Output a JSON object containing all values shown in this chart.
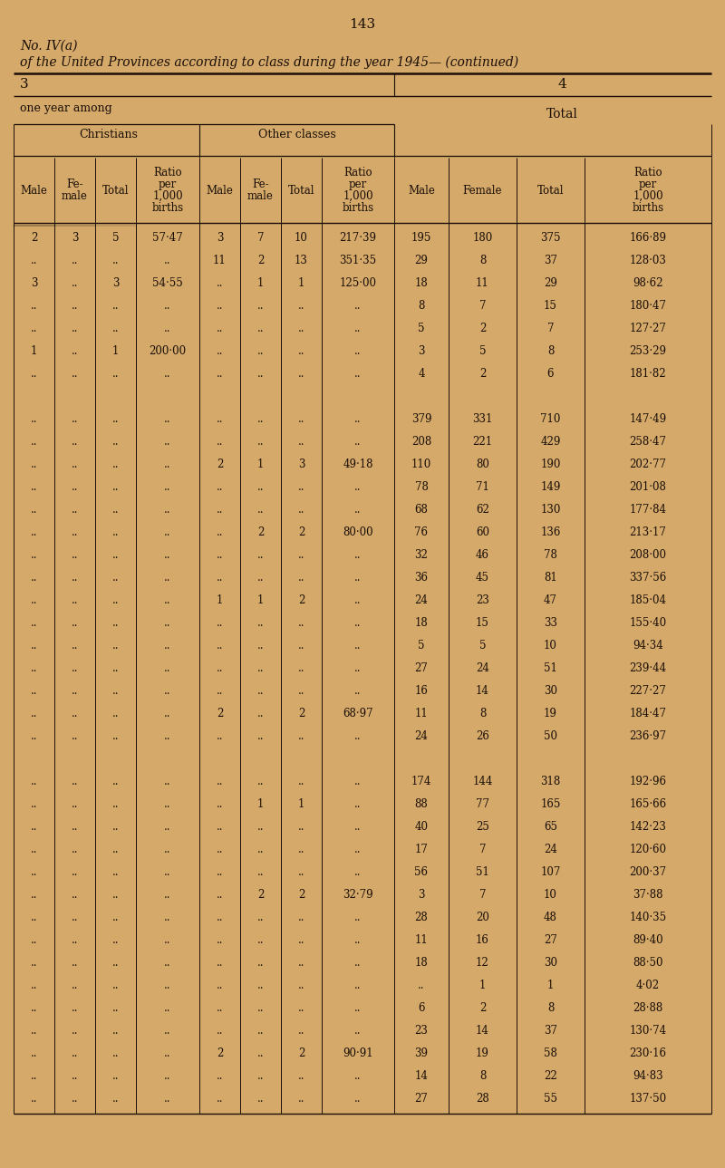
{
  "page_number": "143",
  "title_line1": "No. IV(a)",
  "title_line2": "of the United Provinces according to class during the year 1945— (continued)",
  "bg_color": "#d4a96a",
  "text_color": "#1a0e06",
  "rows": [
    [
      "2",
      "3",
      "5",
      "57·47",
      "3",
      "7",
      "10",
      "217·39",
      "195",
      "180",
      "375",
      "166·89"
    ],
    [
      "..",
      "..",
      "..",
      "..",
      "11",
      "2",
      "13",
      "351·35",
      "29",
      "8",
      "37",
      "128·03"
    ],
    [
      "3",
      "..",
      "3",
      "54·55",
      "..",
      "1",
      "1",
      "125·00",
      "18",
      "11",
      "29",
      "98·62"
    ],
    [
      "..",
      "..",
      "..",
      "..",
      "..",
      "..",
      "..",
      "..",
      "8",
      "7",
      "15",
      "180·47"
    ],
    [
      "..",
      "..",
      "..",
      "..",
      "..",
      "..",
      "..",
      "..",
      "5",
      "2",
      "7",
      "127·27"
    ],
    [
      "1",
      "..",
      "1",
      "200·00",
      "..",
      "..",
      "..",
      "..",
      "3",
      "5",
      "8",
      "253·29"
    ],
    [
      "..",
      "..",
      "..",
      "..",
      "..",
      "..",
      "..",
      "..",
      "4",
      "2",
      "6",
      "181·82"
    ],
    [
      "",
      "",
      "",
      "",
      "",
      "",
      "",
      "",
      "",
      "",
      "",
      ""
    ],
    [
      "..",
      "..",
      "..",
      "..",
      "..",
      "..",
      "..",
      "..",
      "379",
      "331",
      "710",
      "147·49"
    ],
    [
      "..",
      "..",
      "..",
      "..",
      "..",
      "..",
      "..",
      "..",
      "208",
      "221",
      "429",
      "258·47"
    ],
    [
      "..",
      "..",
      "..",
      "..",
      "2",
      "1",
      "3",
      "49·18",
      "110",
      "80",
      "190",
      "202·77"
    ],
    [
      "..",
      "..",
      "..",
      "..",
      "..",
      "..",
      "..",
      "..",
      "78",
      "71",
      "149",
      "201·08"
    ],
    [
      "..",
      "..",
      "..",
      "..",
      "..",
      "..",
      "..",
      "..",
      "68",
      "62",
      "130",
      "177·84"
    ],
    [
      "..",
      "..",
      "..",
      "..",
      "..",
      "2",
      "2",
      "80·00",
      "76",
      "60",
      "136",
      "213·17"
    ],
    [
      "..",
      "..",
      "..",
      "..",
      "..",
      "..",
      "..",
      "..",
      "32",
      "46",
      "78",
      "208·00"
    ],
    [
      "..",
      "..",
      "..",
      "..",
      "..",
      "..",
      "..",
      "..",
      "36",
      "45",
      "81",
      "337·56"
    ],
    [
      "..",
      "..",
      "..",
      "..",
      "1",
      "1",
      "2",
      "..",
      "24",
      "23",
      "47",
      "185·04"
    ],
    [
      "..",
      "..",
      "..",
      "..",
      "..",
      "..",
      "..",
      "..",
      "18",
      "15",
      "33",
      "155·40"
    ],
    [
      "..",
      "..",
      "..",
      "..",
      "..",
      "..",
      "..",
      "..",
      "5",
      "5",
      "10",
      "94·34"
    ],
    [
      "..",
      "..",
      "..",
      "..",
      "..",
      "..",
      "..",
      "..",
      "27",
      "24",
      "51",
      "239·44"
    ],
    [
      "..",
      "..",
      "..",
      "..",
      "..",
      "..",
      "..",
      "..",
      "16",
      "14",
      "30",
      "227·27"
    ],
    [
      "..",
      "..",
      "..",
      "..",
      "2",
      "..",
      "2",
      "68·97",
      "11",
      "8",
      "19",
      "184·47"
    ],
    [
      "..",
      "..",
      "..",
      "..",
      "..",
      "..",
      "..",
      "..",
      "24",
      "26",
      "50",
      "236·97"
    ],
    [
      "",
      "",
      "",
      "",
      "",
      "",
      "",
      "",
      "",
      "",
      "",
      ""
    ],
    [
      "..",
      "..",
      "..",
      "..",
      "..",
      "..",
      "..",
      "..",
      "174",
      "144",
      "318",
      "192·96"
    ],
    [
      "..",
      "..",
      "..",
      "..",
      "..",
      "1",
      "1",
      "..",
      "88",
      "77",
      "165",
      "165·66"
    ],
    [
      "..",
      "..",
      "..",
      "..",
      "..",
      "..",
      "..",
      "..",
      "40",
      "25",
      "65",
      "142·23"
    ],
    [
      "..",
      "..",
      "..",
      "..",
      "..",
      "..",
      "..",
      "..",
      "17",
      "7",
      "24",
      "120·60"
    ],
    [
      "..",
      "..",
      "..",
      "..",
      "..",
      "..",
      "..",
      "..",
      "56",
      "51",
      "107",
      "200·37"
    ],
    [
      "..",
      "..",
      "..",
      "..",
      "..",
      "2",
      "2",
      "32·79",
      "3",
      "7",
      "10",
      "37·88"
    ],
    [
      "..",
      "..",
      "..",
      "..",
      "..",
      "..",
      "..",
      "..",
      "28",
      "20",
      "48",
      "140·35"
    ],
    [
      "..",
      "..",
      "..",
      "..",
      "..",
      "..",
      "..",
      "..",
      "11",
      "16",
      "27",
      "89·40"
    ],
    [
      "..",
      "..",
      "..",
      "..",
      "..",
      "..",
      "..",
      "..",
      "18",
      "12",
      "30",
      "88·50"
    ],
    [
      "..",
      "..",
      "..",
      "..",
      "..",
      "..",
      "..",
      "..",
      "..",
      "1",
      "1",
      "4·02"
    ],
    [
      "..",
      "..",
      "..",
      "..",
      "..",
      "..",
      "..",
      "..",
      "6",
      "2",
      "8",
      "28·88"
    ],
    [
      "..",
      "..",
      "..",
      "..",
      "..",
      "..",
      "..",
      "..",
      "23",
      "14",
      "37",
      "130·74"
    ],
    [
      "..",
      "..",
      "..",
      "..",
      "2",
      "..",
      "2",
      "90·91",
      "39",
      "19",
      "58",
      "230·16"
    ],
    [
      "..",
      "..",
      "..",
      "..",
      "..",
      "..",
      "..",
      "..",
      "14",
      "8",
      "22",
      "94·83"
    ],
    [
      "..",
      "..",
      "..",
      "..",
      "..",
      "..",
      "..",
      "..",
      "27",
      "28",
      "55",
      "137·50"
    ]
  ]
}
